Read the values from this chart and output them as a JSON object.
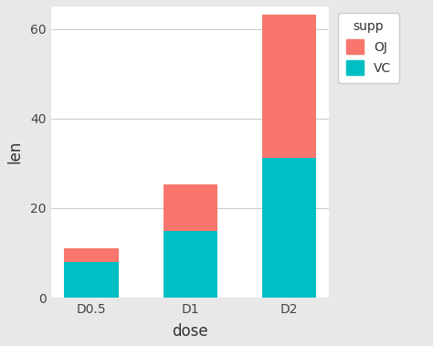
{
  "categories": [
    "D0.5",
    "D1",
    "D2"
  ],
  "vc_values": [
    7.98,
    14.95,
    31.17
  ],
  "oj_values": [
    3.02,
    10.33,
    31.95
  ],
  "vc_color": "#00BFC4",
  "oj_color": "#F8766D",
  "xlabel": "dose",
  "ylabel": "len",
  "ylim": [
    0,
    65
  ],
  "yticks": [
    0,
    20,
    40,
    60
  ],
  "legend_title": "supp",
  "outer_bg": "#E8E8E8",
  "panel_bg": "#FFFFFF",
  "grid_color": "#CCCCCC",
  "bar_width": 0.55,
  "legend_fontsize": 10,
  "axis_label_fontsize": 12,
  "tick_fontsize": 10
}
